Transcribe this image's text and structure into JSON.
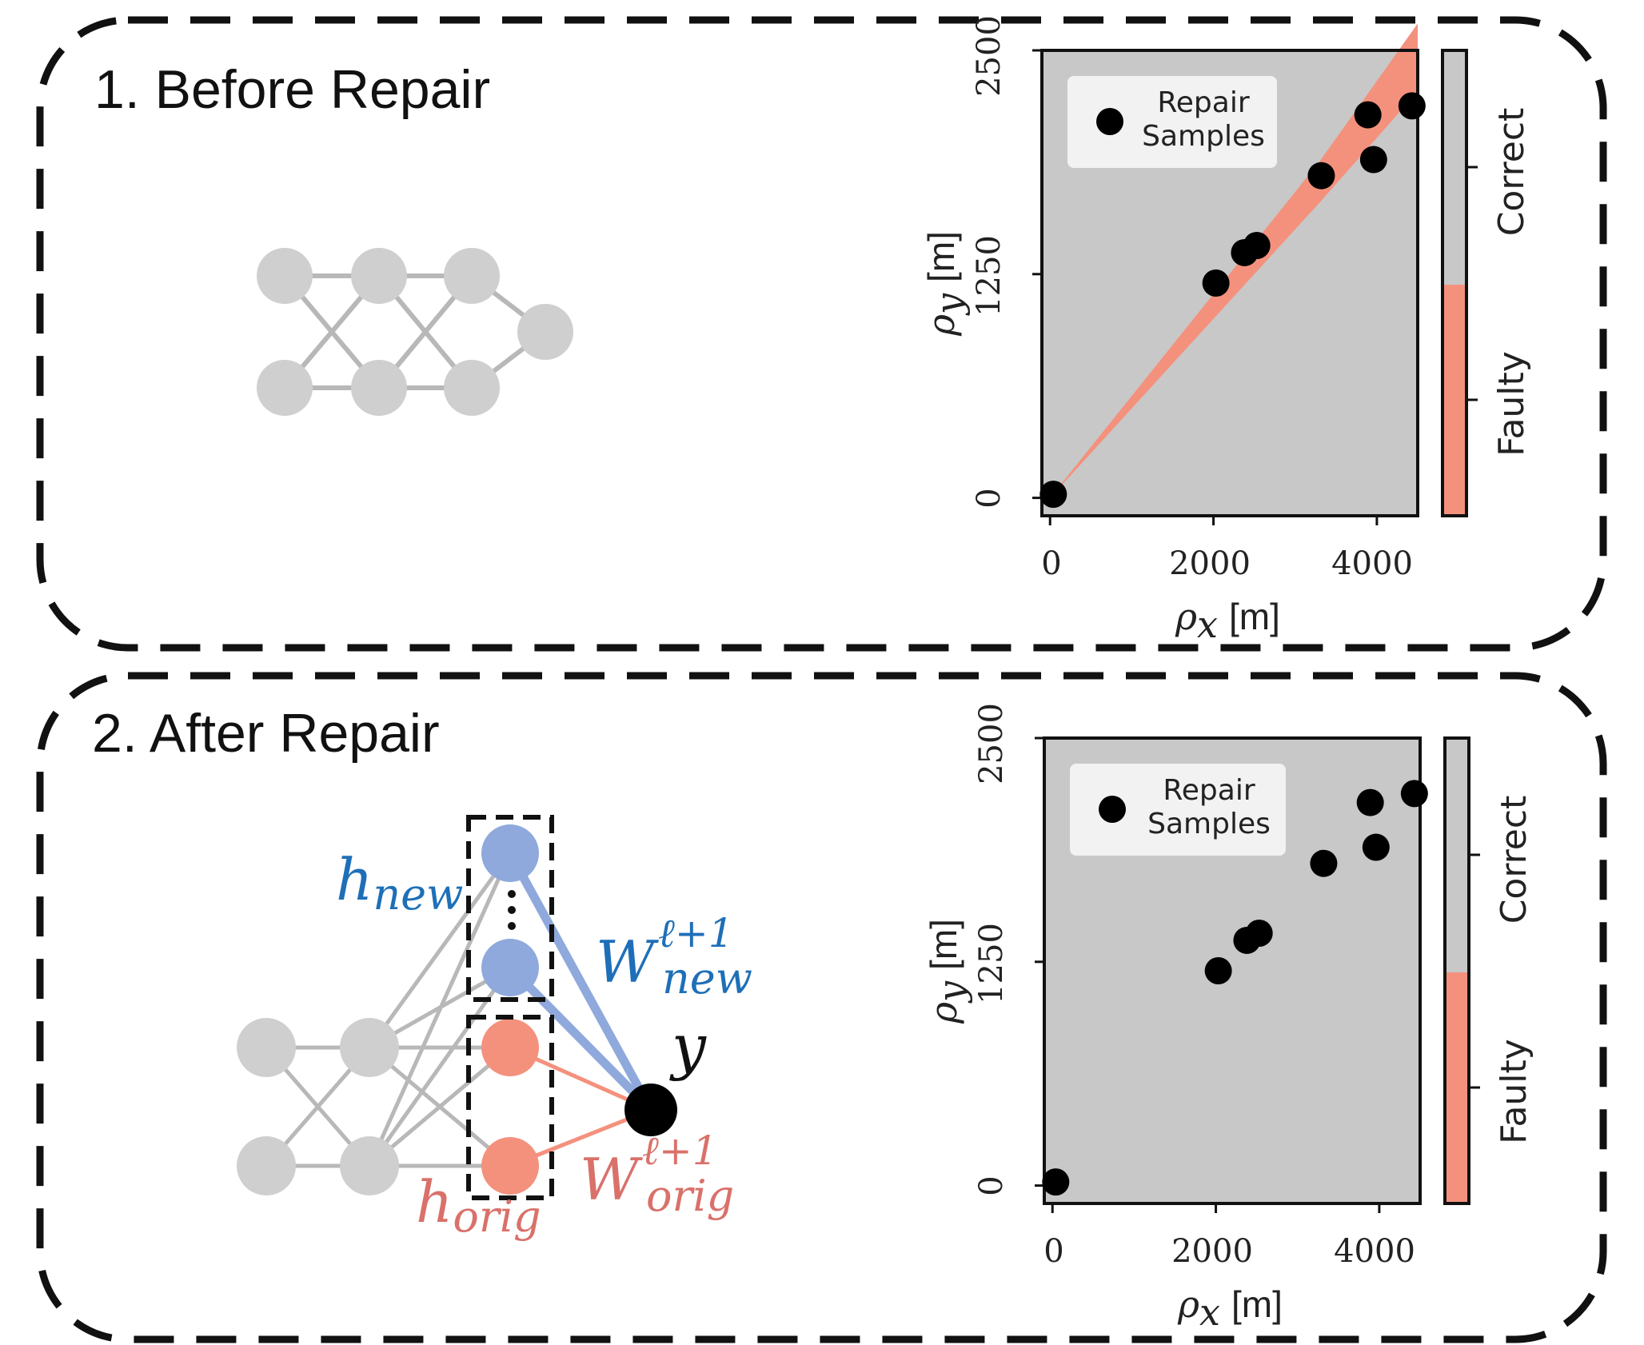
{
  "panels": [
    {
      "title": "1. Before Repair",
      "legend": {
        "line1": "Repair",
        "line2": "Samples"
      },
      "colorbar": {
        "top_label": "Correct",
        "bottom_label": "Faulty"
      },
      "x_ticks": [
        "0",
        "2000",
        "4000"
      ],
      "y_ticks": [
        "0",
        "1250",
        "2500"
      ],
      "xlabel": {
        "symbol": "ρ",
        "sub": "x",
        "unit": "[m]"
      },
      "ylabel": {
        "symbol": "ρ",
        "sub": "y",
        "unit": "[m]"
      }
    },
    {
      "title": "2. After Repair",
      "legend": {
        "line1": "Repair",
        "line2": "Samples"
      },
      "colorbar": {
        "top_label": "Correct",
        "bottom_label": "Faulty"
      },
      "x_ticks": [
        "0",
        "2000",
        "4000"
      ],
      "y_ticks": [
        "0",
        "1250",
        "2500"
      ],
      "xlabel": {
        "symbol": "ρ",
        "sub": "x",
        "unit": "[m]"
      },
      "ylabel": {
        "symbol": "ρ",
        "sub": "y",
        "unit": "[m]"
      }
    }
  ],
  "network_labels": {
    "h": "h",
    "new": "new",
    "orig": "orig",
    "W": "W",
    "layer_sup": "ℓ+1",
    "y": "y"
  },
  "colors": {
    "correct": "#c8c8c8",
    "faulty": "#f4917d",
    "new_blue": "#8fa9dc",
    "orig_red": "#f4917d",
    "label_blue": "#1e6fb8",
    "label_red": "#d9716a",
    "node_grey": "#cfcfcf"
  },
  "chart_data": [
    {
      "type": "scatter",
      "series": [
        {
          "name": "Repair Samples",
          "points": [
            [
              40,
              20
            ],
            [
              2030,
              1200
            ],
            [
              2380,
              1370
            ],
            [
              2530,
              1410
            ],
            [
              3320,
              1800
            ],
            [
              3960,
              1890
            ],
            [
              3890,
              2140
            ],
            [
              4430,
              2190
            ]
          ]
        }
      ],
      "xlim": [
        -100,
        4500
      ],
      "ylim": [
        -100,
        2500
      ],
      "x_ticks": [
        0,
        2000,
        4000
      ],
      "y_ticks": [
        0,
        1250,
        2500
      ],
      "faulty_region": true,
      "colorbar": [
        "Correct",
        "Faulty"
      ]
    },
    {
      "type": "scatter",
      "series": [
        {
          "name": "Repair Samples",
          "points": [
            [
              40,
              20
            ],
            [
              2030,
              1200
            ],
            [
              2380,
              1370
            ],
            [
              2530,
              1410
            ],
            [
              3320,
              1800
            ],
            [
              3960,
              1890
            ],
            [
              3890,
              2140
            ],
            [
              4430,
              2190
            ]
          ]
        }
      ],
      "xlim": [
        -100,
        4500
      ],
      "ylim": [
        -100,
        2500
      ],
      "x_ticks": [
        0,
        2000,
        4000
      ],
      "y_ticks": [
        0,
        1250,
        2500
      ],
      "faulty_region": false,
      "colorbar": [
        "Correct",
        "Faulty"
      ]
    }
  ]
}
